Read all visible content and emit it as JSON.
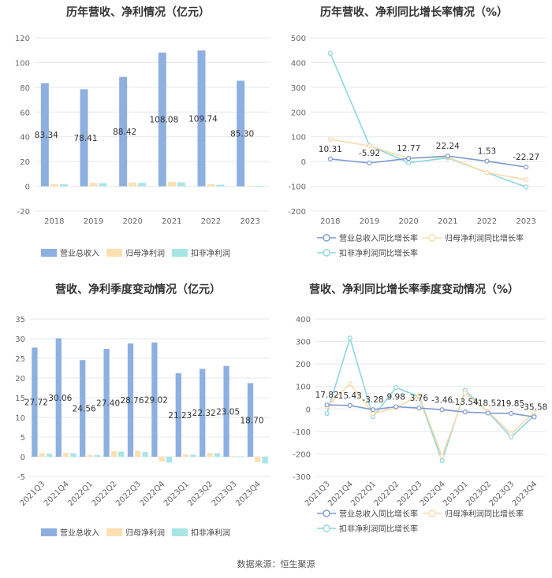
{
  "footer": {
    "source": "数据来源：恒生聚源"
  },
  "chart_data": [
    {
      "type": "bar",
      "title": "历年营收、净利情况（亿元）",
      "categories": [
        "2018",
        "2019",
        "2020",
        "2021",
        "2022",
        "2023"
      ],
      "ylim": [
        -20,
        120
      ],
      "yticks": [
        -20,
        0,
        20,
        40,
        60,
        80,
        100,
        120
      ],
      "legend_position": "bottom",
      "series": [
        {
          "name": "营业总收入",
          "color": "#8eb0e0",
          "values": [
            83.34,
            78.41,
            88.42,
            108.08,
            109.74,
            85.3
          ],
          "labels": [
            "83.34",
            "78.41",
            "88.42",
            "108.08",
            "109.74",
            "85.30"
          ]
        },
        {
          "name": "归母净利润",
          "color": "#fde0b0",
          "values": [
            1.9,
            2.7,
            3.0,
            3.6,
            1.7,
            0.4
          ]
        },
        {
          "name": "扣非净利润",
          "color": "#a8e6e6",
          "values": [
            1.6,
            2.6,
            2.8,
            3.2,
            1.3,
            0.3
          ]
        }
      ]
    },
    {
      "type": "line",
      "title": "历年营收、净利同比增长率情况（%）",
      "categories": [
        "2018",
        "2019",
        "2020",
        "2021",
        "2022",
        "2023"
      ],
      "ylim": [
        -200,
        500
      ],
      "yticks": [
        -200,
        -100,
        0,
        100,
        200,
        300,
        400,
        500
      ],
      "legend_position": "bottom",
      "series": [
        {
          "name": "营业总收入同比增长率",
          "color": "#7d9bd0",
          "values": [
            10.31,
            -5.92,
            12.77,
            22.24,
            1.53,
            -22.27
          ],
          "labels": [
            "10.31",
            "-5.92",
            "12.77",
            "22.24",
            "1.53",
            "-22.27"
          ]
        },
        {
          "name": "归母净利润同比增长率",
          "color": "#fcd9a8",
          "values": [
            90,
            63,
            13,
            18,
            -45,
            -73
          ]
        },
        {
          "name": "扣非净利润同比增长率",
          "color": "#8ad8dc",
          "values": [
            437,
            65,
            -5,
            15,
            -45,
            -103
          ]
        }
      ]
    },
    {
      "type": "bar",
      "title": "营收、净利季度变动情况（亿元）",
      "categories": [
        "2021Q3",
        "2021Q4",
        "2022Q1",
        "2022Q2",
        "2022Q3",
        "2022Q4",
        "2023Q1",
        "2023Q2",
        "2023Q3",
        "2023Q4"
      ],
      "ylim": [
        -5,
        35
      ],
      "yticks": [
        -5,
        0,
        5,
        10,
        15,
        20,
        25,
        30,
        35
      ],
      "legend_position": "bottom",
      "series": [
        {
          "name": "营业总收入",
          "color": "#8eb0e0",
          "values": [
            27.72,
            30.06,
            24.56,
            27.4,
            28.76,
            29.02,
            21.23,
            22.32,
            23.05,
            18.7
          ],
          "labels": [
            "27.72",
            "30.06",
            "24.56",
            "27.40",
            "28.76",
            "29.02",
            "21.23",
            "22.32",
            "23.05",
            "18.70"
          ]
        },
        {
          "name": "归母净利润",
          "color": "#fde0b0",
          "values": [
            0.9,
            1.0,
            0.5,
            1.4,
            1.5,
            -1.2,
            0.6,
            1.0,
            0.2,
            -1.4
          ]
        },
        {
          "name": "扣非净利润",
          "color": "#a8e6e6",
          "values": [
            0.8,
            0.9,
            0.4,
            1.3,
            1.2,
            -1.5,
            0.5,
            0.9,
            0.1,
            -1.7
          ]
        }
      ]
    },
    {
      "type": "line",
      "title": "营收、净利同比增长率季度变动情况（%）",
      "categories": [
        "2021Q3",
        "2021Q4",
        "2022Q1",
        "2022Q2",
        "2022Q3",
        "2022Q4",
        "2023Q1",
        "2023Q2",
        "2023Q3",
        "2023Q4"
      ],
      "ylim": [
        -300,
        400
      ],
      "yticks": [
        -300,
        -200,
        -100,
        0,
        100,
        200,
        300,
        400
      ],
      "legend_position": "bottom",
      "series": [
        {
          "name": "营业总收入同比增长率",
          "color": "#7d9bd0",
          "values": [
            17.82,
            15.43,
            -3.28,
            9.98,
            3.76,
            -3.46,
            -13.54,
            -18.52,
            -19.85,
            -35.58
          ],
          "labels": [
            "17.82",
            "15.43",
            "-3.28",
            "9.98",
            "3.76",
            "-3.46",
            "-13.54",
            "-18.52",
            "-19.85",
            "-35.58"
          ]
        },
        {
          "name": "归母净利润同比增长率",
          "color": "#fcd9a8",
          "values": [
            10,
            112,
            -20,
            5,
            60,
            -210,
            70,
            -12,
            -110,
            -15
          ]
        },
        {
          "name": "扣非净利润同比增长率",
          "color": "#8ad8dc",
          "values": [
            -20,
            315,
            -35,
            95,
            55,
            -230,
            82,
            -15,
            -125,
            -30
          ]
        }
      ]
    }
  ]
}
